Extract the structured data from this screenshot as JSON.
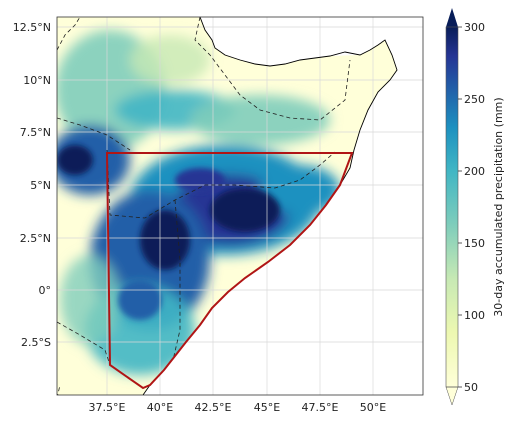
{
  "map": {
    "lon_ticks": [
      "37.5°E",
      "40°E",
      "42.5°E",
      "45°E",
      "47.5°E",
      "50°E"
    ],
    "lat_ticks": [
      "12.5°N",
      "10°N",
      "7.5°N",
      "5°N",
      "2.5°N",
      "0°",
      "2.5°S"
    ],
    "extent": {
      "lon": [
        35.0,
        53.0
      ],
      "lat": [
        -4.8,
        13.2
      ]
    },
    "region_box_color": "#b01515",
    "ocean_color": "#ffffff",
    "land_low_color": "#ffffd9"
  },
  "colorbar": {
    "label": "30-day accumulated precipitation (mm)",
    "ticks": [
      "300",
      "250",
      "200",
      "150",
      "100",
      "50"
    ],
    "range": [
      50,
      300
    ],
    "colormap": "YlGnBu",
    "extend": "both"
  }
}
